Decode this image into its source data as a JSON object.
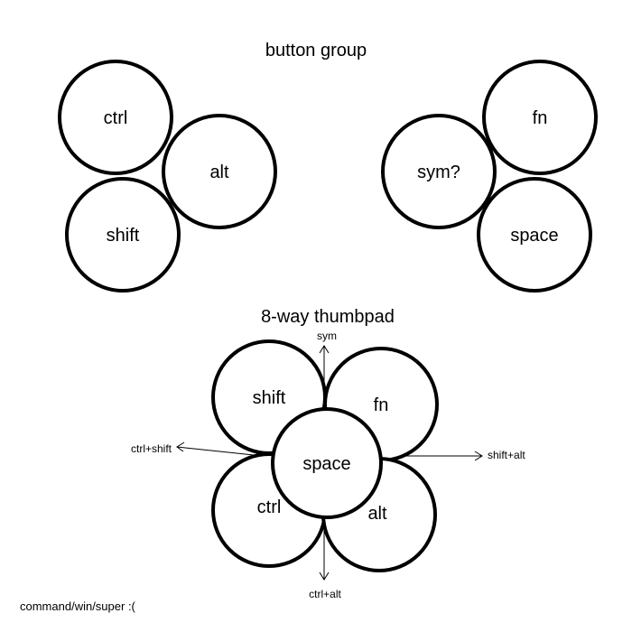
{
  "button_group": {
    "title": "button group",
    "left_cluster": {
      "ctrl": "ctrl",
      "alt": "alt",
      "shift": "shift"
    },
    "right_cluster": {
      "fn": "fn",
      "sym": "sym?",
      "space": "space"
    }
  },
  "thumbpad": {
    "title": "8-way thumbpad",
    "keys": {
      "shift": "shift",
      "fn": "fn",
      "ctrl": "ctrl",
      "alt": "alt",
      "space": "space"
    },
    "directions": {
      "up": "sym",
      "left": "ctrl+shift",
      "right": "shift+alt",
      "down": "ctrl+alt"
    }
  },
  "footnote": "command/win/super :("
}
